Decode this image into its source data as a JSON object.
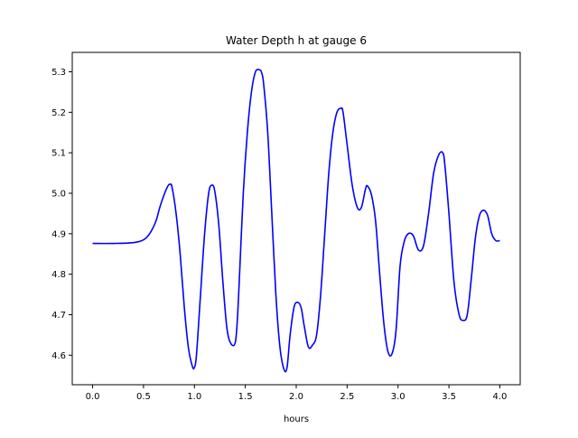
{
  "chart_data": {
    "type": "line",
    "title": "Water Depth h at gauge 6",
    "xlabel": "hours",
    "ylabel": "",
    "xlim": [
      -0.2,
      4.2
    ],
    "ylim": [
      4.527,
      5.348
    ],
    "xticks": [
      0.0,
      0.5,
      1.0,
      1.5,
      2.0,
      2.5,
      3.0,
      3.5,
      4.0
    ],
    "xtick_labels": [
      "0.0",
      "0.5",
      "1.0",
      "1.5",
      "2.0",
      "2.5",
      "3.0",
      "3.5",
      "4.0"
    ],
    "yticks": [
      4.6,
      4.7,
      4.8,
      4.9,
      5.0,
      5.1,
      5.2,
      5.3
    ],
    "ytick_labels": [
      "4.6",
      "4.7",
      "4.8",
      "4.9",
      "5.0",
      "5.1",
      "5.2",
      "5.3"
    ],
    "grid": false,
    "series": [
      {
        "color": "#0000ff",
        "x": [
          0.0,
          0.2,
          0.4,
          0.5,
          0.56,
          0.62,
          0.66,
          0.7,
          0.74,
          0.76,
          0.78,
          0.82,
          0.86,
          0.9,
          0.94,
          0.98,
          1.0,
          1.02,
          1.06,
          1.1,
          1.14,
          1.17,
          1.2,
          1.24,
          1.28,
          1.32,
          1.36,
          1.4,
          1.42,
          1.44,
          1.48,
          1.52,
          1.56,
          1.6,
          1.64,
          1.66,
          1.68,
          1.72,
          1.76,
          1.8,
          1.84,
          1.88,
          1.91,
          1.94,
          1.98,
          2.02,
          2.05,
          2.08,
          2.12,
          2.16,
          2.2,
          2.24,
          2.28,
          2.32,
          2.36,
          2.4,
          2.44,
          2.46,
          2.5,
          2.55,
          2.6,
          2.64,
          2.68,
          2.7,
          2.74,
          2.78,
          2.82,
          2.86,
          2.9,
          2.94,
          2.98,
          3.02,
          3.06,
          3.1,
          3.15,
          3.2,
          3.25,
          3.3,
          3.35,
          3.4,
          3.44,
          3.46,
          3.5,
          3.55,
          3.6,
          3.64,
          3.68,
          3.72,
          3.76,
          3.8,
          3.84,
          3.88,
          3.92,
          3.96,
          4.0
        ],
        "y": [
          4.876,
          4.876,
          4.878,
          4.885,
          4.9,
          4.93,
          4.965,
          4.995,
          5.018,
          5.022,
          5.015,
          4.95,
          4.85,
          4.72,
          4.62,
          4.572,
          4.57,
          4.6,
          4.75,
          4.9,
          5.0,
          5.02,
          5.005,
          4.92,
          4.78,
          4.665,
          4.628,
          4.63,
          4.68,
          4.78,
          5.0,
          5.15,
          5.25,
          5.3,
          5.305,
          5.298,
          5.27,
          5.15,
          4.95,
          4.75,
          4.62,
          4.565,
          4.57,
          4.65,
          4.72,
          4.73,
          4.715,
          4.67,
          4.62,
          4.625,
          4.65,
          4.75,
          4.9,
          5.05,
          5.15,
          5.2,
          5.21,
          5.2,
          5.12,
          5.02,
          4.965,
          4.965,
          5.01,
          5.018,
          4.995,
          4.93,
          4.8,
          4.68,
          4.61,
          4.603,
          4.66,
          4.82,
          4.88,
          4.9,
          4.895,
          4.86,
          4.87,
          4.95,
          5.05,
          5.095,
          5.1,
          5.07,
          4.95,
          4.78,
          4.7,
          4.686,
          4.7,
          4.79,
          4.89,
          4.945,
          4.958,
          4.945,
          4.9,
          4.883,
          4.883
        ]
      }
    ]
  }
}
